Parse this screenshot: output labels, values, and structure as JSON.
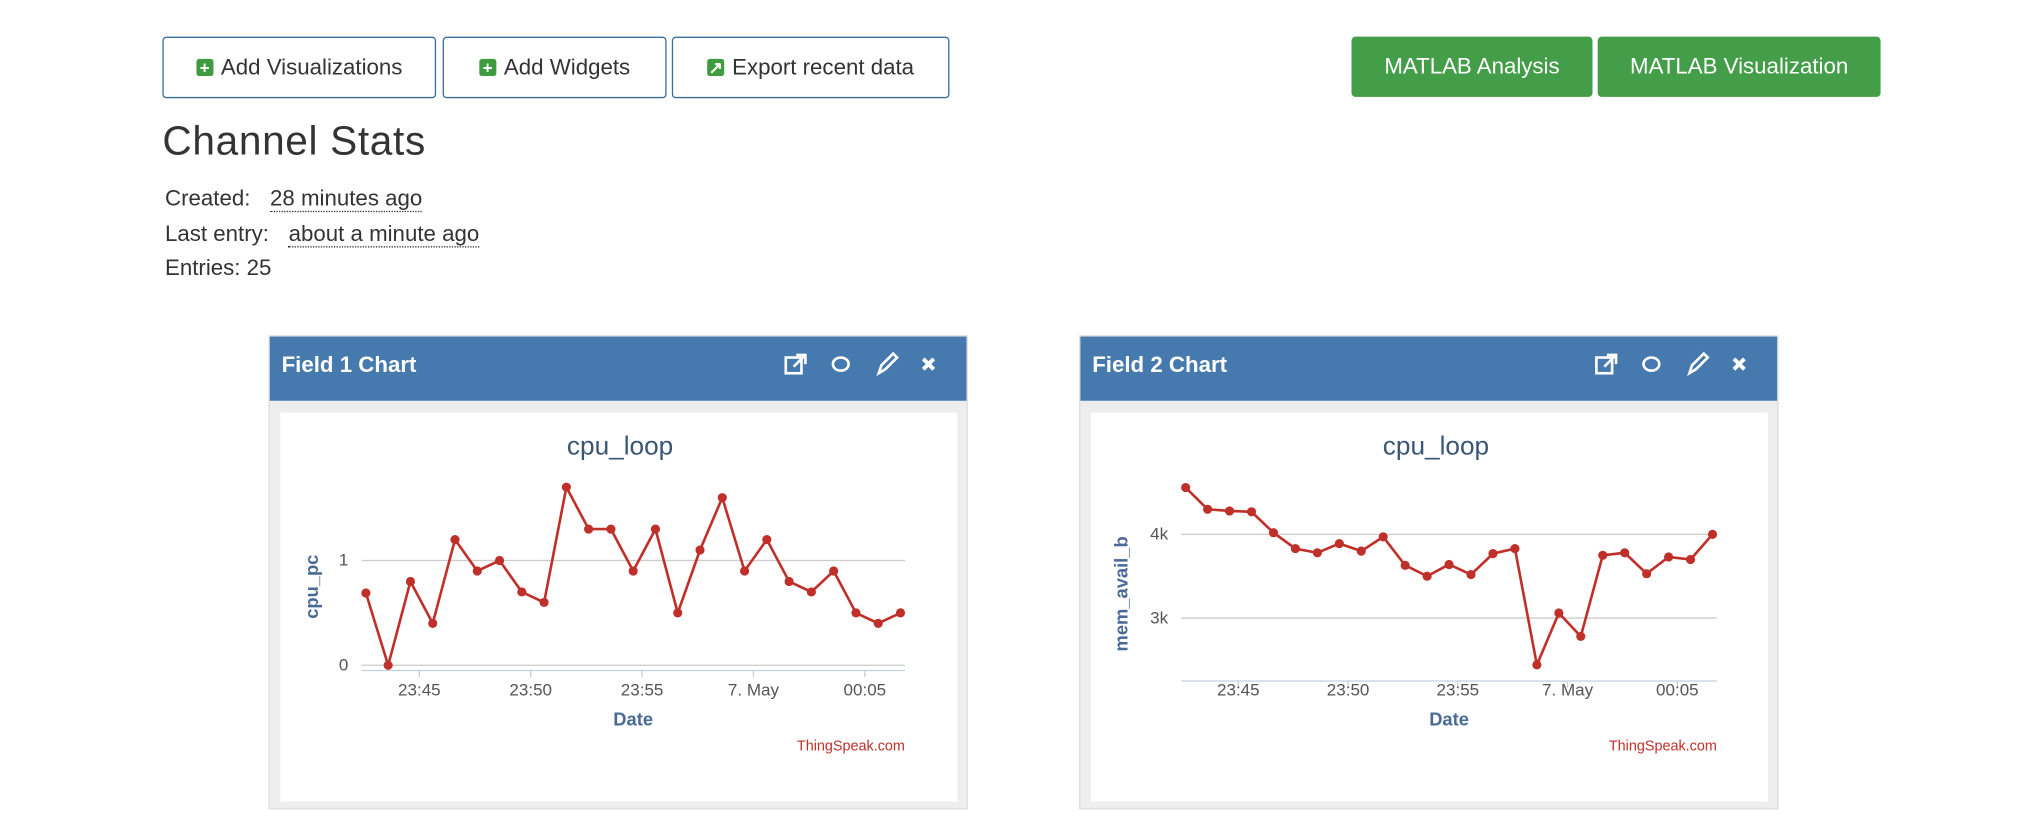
{
  "toolbar": {
    "left_buttons": [
      "Add Visualizations",
      "Add Widgets",
      "Export recent data"
    ],
    "right_buttons": [
      "MATLAB Analysis",
      "MATLAB Visualization"
    ]
  },
  "stats": {
    "title": "Channel Stats",
    "created_label": "Created:",
    "created": "28 minutes ago",
    "last_entry_label": "Last entry:",
    "last_entry": "about a minute ago",
    "entries": "Entries: 25"
  },
  "panels": [
    {
      "title": "Field 1 Chart",
      "chart_data": {
        "type": "line",
        "title": "cpu_loop",
        "xlabel": "Date",
        "ylabel": "cpu_pc",
        "credit": "ThingSpeak.com",
        "color": "#c0302a",
        "grid": true,
        "x": [
          1422.6,
          1423.6,
          1424.6,
          1425.6,
          1426.6,
          1427.6,
          1428.6,
          1429.6,
          1430.6,
          1431.6,
          1432.6,
          1433.6,
          1434.6,
          1435.6,
          1436.6,
          1437.6,
          1438.6,
          1439.6,
          1440.6,
          1441.6,
          1442.6,
          1443.6,
          1444.6,
          1445.6,
          1446.6
        ],
        "values": [
          0.69,
          0,
          0.8,
          0.4,
          1.2,
          0.9,
          1.0,
          0.7,
          0.6,
          1.7,
          1.3,
          1.3,
          0.9,
          1.3,
          0.5,
          1.1,
          1.6,
          0.9,
          1.2,
          0.8,
          0.7,
          0.9,
          0.5,
          0.4,
          0.5
        ],
        "xlim": [
          1422.4,
          1446.8
        ],
        "xticks": [
          {
            "value": 1425,
            "label": "23:45"
          },
          {
            "value": 1430,
            "label": "23:50"
          },
          {
            "value": 1435,
            "label": "23:55"
          },
          {
            "value": 1440,
            "label": "7. May"
          },
          {
            "value": 1445,
            "label": "00:05"
          }
        ],
        "ylim": [
          0,
          1.75
        ],
        "yticks": [
          0,
          1
        ]
      }
    },
    {
      "title": "Field 2 Chart",
      "chart_data": {
        "type": "line",
        "title": "cpu_loop",
        "xlabel": "Date",
        "ylabel": "mem_avail_b",
        "credit": "ThingSpeak.com",
        "color": "#c0302a",
        "grid": true,
        "x": [
          1422.6,
          1423.6,
          1424.6,
          1425.6,
          1426.6,
          1427.6,
          1428.6,
          1429.6,
          1430.6,
          1431.6,
          1432.6,
          1433.6,
          1434.6,
          1435.6,
          1436.6,
          1437.6,
          1438.6,
          1439.6,
          1440.6,
          1441.6,
          1442.6,
          1443.6,
          1444.6,
          1445.6,
          1446.6
        ],
        "values": [
          4560,
          4300,
          4280,
          4270,
          4020,
          3830,
          3780,
          3890,
          3800,
          3970,
          3630,
          3500,
          3640,
          3520,
          3770,
          3830,
          2440,
          3060,
          2780,
          3750,
          3780,
          3530,
          3730,
          3700,
          4000
        ],
        "xlim": [
          1422.4,
          1446.8
        ],
        "xticks": [
          {
            "value": 1425,
            "label": "23:45"
          },
          {
            "value": 1430,
            "label": "23:50"
          },
          {
            "value": 1435,
            "label": "23:55"
          },
          {
            "value": 1440,
            "label": "7. May"
          },
          {
            "value": 1445,
            "label": "00:05"
          }
        ],
        "ylim": [
          2310,
          4580
        ],
        "yticks": [
          {
            "value": 3000,
            "label": "3k"
          },
          {
            "value": 4000,
            "label": "4k"
          }
        ]
      }
    }
  ]
}
